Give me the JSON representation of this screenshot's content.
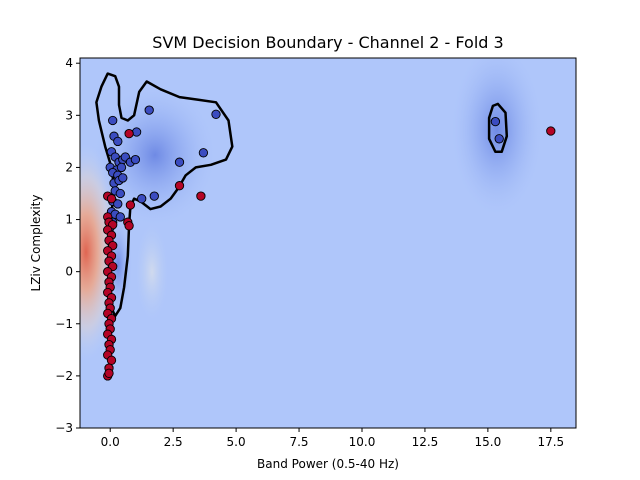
{
  "chart_data": {
    "type": "scatter",
    "title": "SVM Decision Boundary - Channel 2 - Fold 3",
    "xlabel": "Band Power (0.5-40 Hz)",
    "ylabel": "LZiv Complexity",
    "xlim": [
      -1.2,
      18.5
    ],
    "ylim": [
      -3.0,
      4.1
    ],
    "xticks": [
      0.0,
      2.5,
      5.0,
      7.5,
      10.0,
      12.5,
      15.0,
      17.5
    ],
    "xtick_labels": [
      "0.0",
      "2.5",
      "5.0",
      "7.5",
      "10.0",
      "12.5",
      "15.0",
      "17.5"
    ],
    "yticks": [
      -3,
      -2,
      -1,
      0,
      1,
      2,
      3,
      4
    ],
    "ytick_labels": [
      "−3",
      "−2",
      "−1",
      "0",
      "1",
      "2",
      "3",
      "4"
    ],
    "grid": false,
    "background_colormap": "coolwarm",
    "decision_boundary_color": "#000000",
    "series": [
      {
        "color": "#3b4cc0",
        "points": [
          [
            0.1,
            2.9
          ],
          [
            0.15,
            2.6
          ],
          [
            0.3,
            2.5
          ],
          [
            0.05,
            2.3
          ],
          [
            0.2,
            2.2
          ],
          [
            0.35,
            2.1
          ],
          [
            0.5,
            2.15
          ],
          [
            0.0,
            2.0
          ],
          [
            0.25,
            1.95
          ],
          [
            0.45,
            2.0
          ],
          [
            0.1,
            1.9
          ],
          [
            0.3,
            1.85
          ],
          [
            0.6,
            2.2
          ],
          [
            0.8,
            2.1
          ],
          [
            1.0,
            2.15
          ],
          [
            0.15,
            1.7
          ],
          [
            0.35,
            1.75
          ],
          [
            0.5,
            1.8
          ],
          [
            0.2,
            1.55
          ],
          [
            0.4,
            1.5
          ],
          [
            0.1,
            1.35
          ],
          [
            0.3,
            1.3
          ],
          [
            0.05,
            1.15
          ],
          [
            0.2,
            1.1
          ],
          [
            0.4,
            1.05
          ],
          [
            0.1,
            0.95
          ],
          [
            0.0,
            0.85
          ],
          [
            1.05,
            2.68
          ],
          [
            1.55,
            3.1
          ],
          [
            2.75,
            2.1
          ],
          [
            3.7,
            2.28
          ],
          [
            4.2,
            3.02
          ],
          [
            1.25,
            1.4
          ],
          [
            1.75,
            1.45
          ],
          [
            15.3,
            2.88
          ],
          [
            15.45,
            2.55
          ]
        ]
      },
      {
        "color": "#b40426",
        "points": [
          [
            0.75,
            2.65
          ],
          [
            2.75,
            1.65
          ],
          [
            3.6,
            1.45
          ],
          [
            17.5,
            2.7
          ],
          [
            0.8,
            1.28
          ],
          [
            0.7,
            0.95
          ],
          [
            0.75,
            0.88
          ],
          [
            -0.1,
            1.45
          ],
          [
            0.05,
            1.4
          ],
          [
            -0.1,
            1.05
          ],
          [
            -0.05,
            0.95
          ],
          [
            0.1,
            0.9
          ],
          [
            -0.1,
            0.8
          ],
          [
            0.05,
            0.7
          ],
          [
            -0.05,
            0.6
          ],
          [
            0.1,
            0.5
          ],
          [
            -0.1,
            0.4
          ],
          [
            0.05,
            0.3
          ],
          [
            -0.05,
            0.2
          ],
          [
            0.1,
            0.1
          ],
          [
            -0.1,
            0.0
          ],
          [
            0.05,
            -0.1
          ],
          [
            -0.05,
            -0.2
          ],
          [
            0.0,
            -0.3
          ],
          [
            -0.1,
            -0.4
          ],
          [
            0.05,
            -0.5
          ],
          [
            -0.05,
            -0.6
          ],
          [
            0.0,
            -0.7
          ],
          [
            -0.1,
            -0.8
          ],
          [
            0.05,
            -0.9
          ],
          [
            -0.05,
            -1.0
          ],
          [
            0.0,
            -1.1
          ],
          [
            -0.1,
            -1.2
          ],
          [
            0.05,
            -1.3
          ],
          [
            -0.05,
            -1.4
          ],
          [
            0.0,
            -1.5
          ],
          [
            -0.1,
            -1.6
          ],
          [
            0.05,
            -1.7
          ],
          [
            -0.05,
            -1.85
          ],
          [
            -0.1,
            -2.0
          ],
          [
            -0.05,
            -1.95
          ]
        ]
      }
    ],
    "decision_boundary": [
      [
        [
          -0.35,
          3.55
        ],
        [
          -0.1,
          3.8
        ],
        [
          0.2,
          3.75
        ],
        [
          0.35,
          3.55
        ],
        [
          0.35,
          3.2
        ],
        [
          0.45,
          2.95
        ],
        [
          0.7,
          2.9
        ],
        [
          0.95,
          3.0
        ],
        [
          1.15,
          3.45
        ],
        [
          1.45,
          3.65
        ],
        [
          2.0,
          3.5
        ],
        [
          2.75,
          3.35
        ],
        [
          3.5,
          3.3
        ],
        [
          4.2,
          3.25
        ],
        [
          4.7,
          2.9
        ],
        [
          4.85,
          2.4
        ],
        [
          4.6,
          2.15
        ],
        [
          4.0,
          2.05
        ],
        [
          3.4,
          2.0
        ],
        [
          3.0,
          1.85
        ],
        [
          2.7,
          1.6
        ],
        [
          2.4,
          1.4
        ],
        [
          2.0,
          1.25
        ],
        [
          1.6,
          1.2
        ],
        [
          1.2,
          1.35
        ],
        [
          0.95,
          1.4
        ],
        [
          0.8,
          1.25
        ],
        [
          0.75,
          0.9
        ],
        [
          0.7,
          0.3
        ],
        [
          0.55,
          -0.3
        ],
        [
          0.4,
          -0.7
        ],
        [
          0.2,
          -0.85
        ],
        [
          0.05,
          -0.7
        ],
        [
          -0.05,
          -0.2
        ],
        [
          -0.05,
          0.6
        ],
        [
          0.05,
          1.1
        ],
        [
          0.15,
          1.6
        ],
        [
          0.05,
          2.0
        ],
        [
          -0.2,
          2.4
        ],
        [
          -0.45,
          2.9
        ],
        [
          -0.55,
          3.25
        ],
        [
          -0.35,
          3.55
        ]
      ],
      [
        [
          15.4,
          3.22
        ],
        [
          15.7,
          3.05
        ],
        [
          15.75,
          2.6
        ],
        [
          15.55,
          2.3
        ],
        [
          15.3,
          2.3
        ],
        [
          15.05,
          2.55
        ],
        [
          15.05,
          2.95
        ],
        [
          15.2,
          3.18
        ],
        [
          15.4,
          3.22
        ]
      ]
    ]
  }
}
